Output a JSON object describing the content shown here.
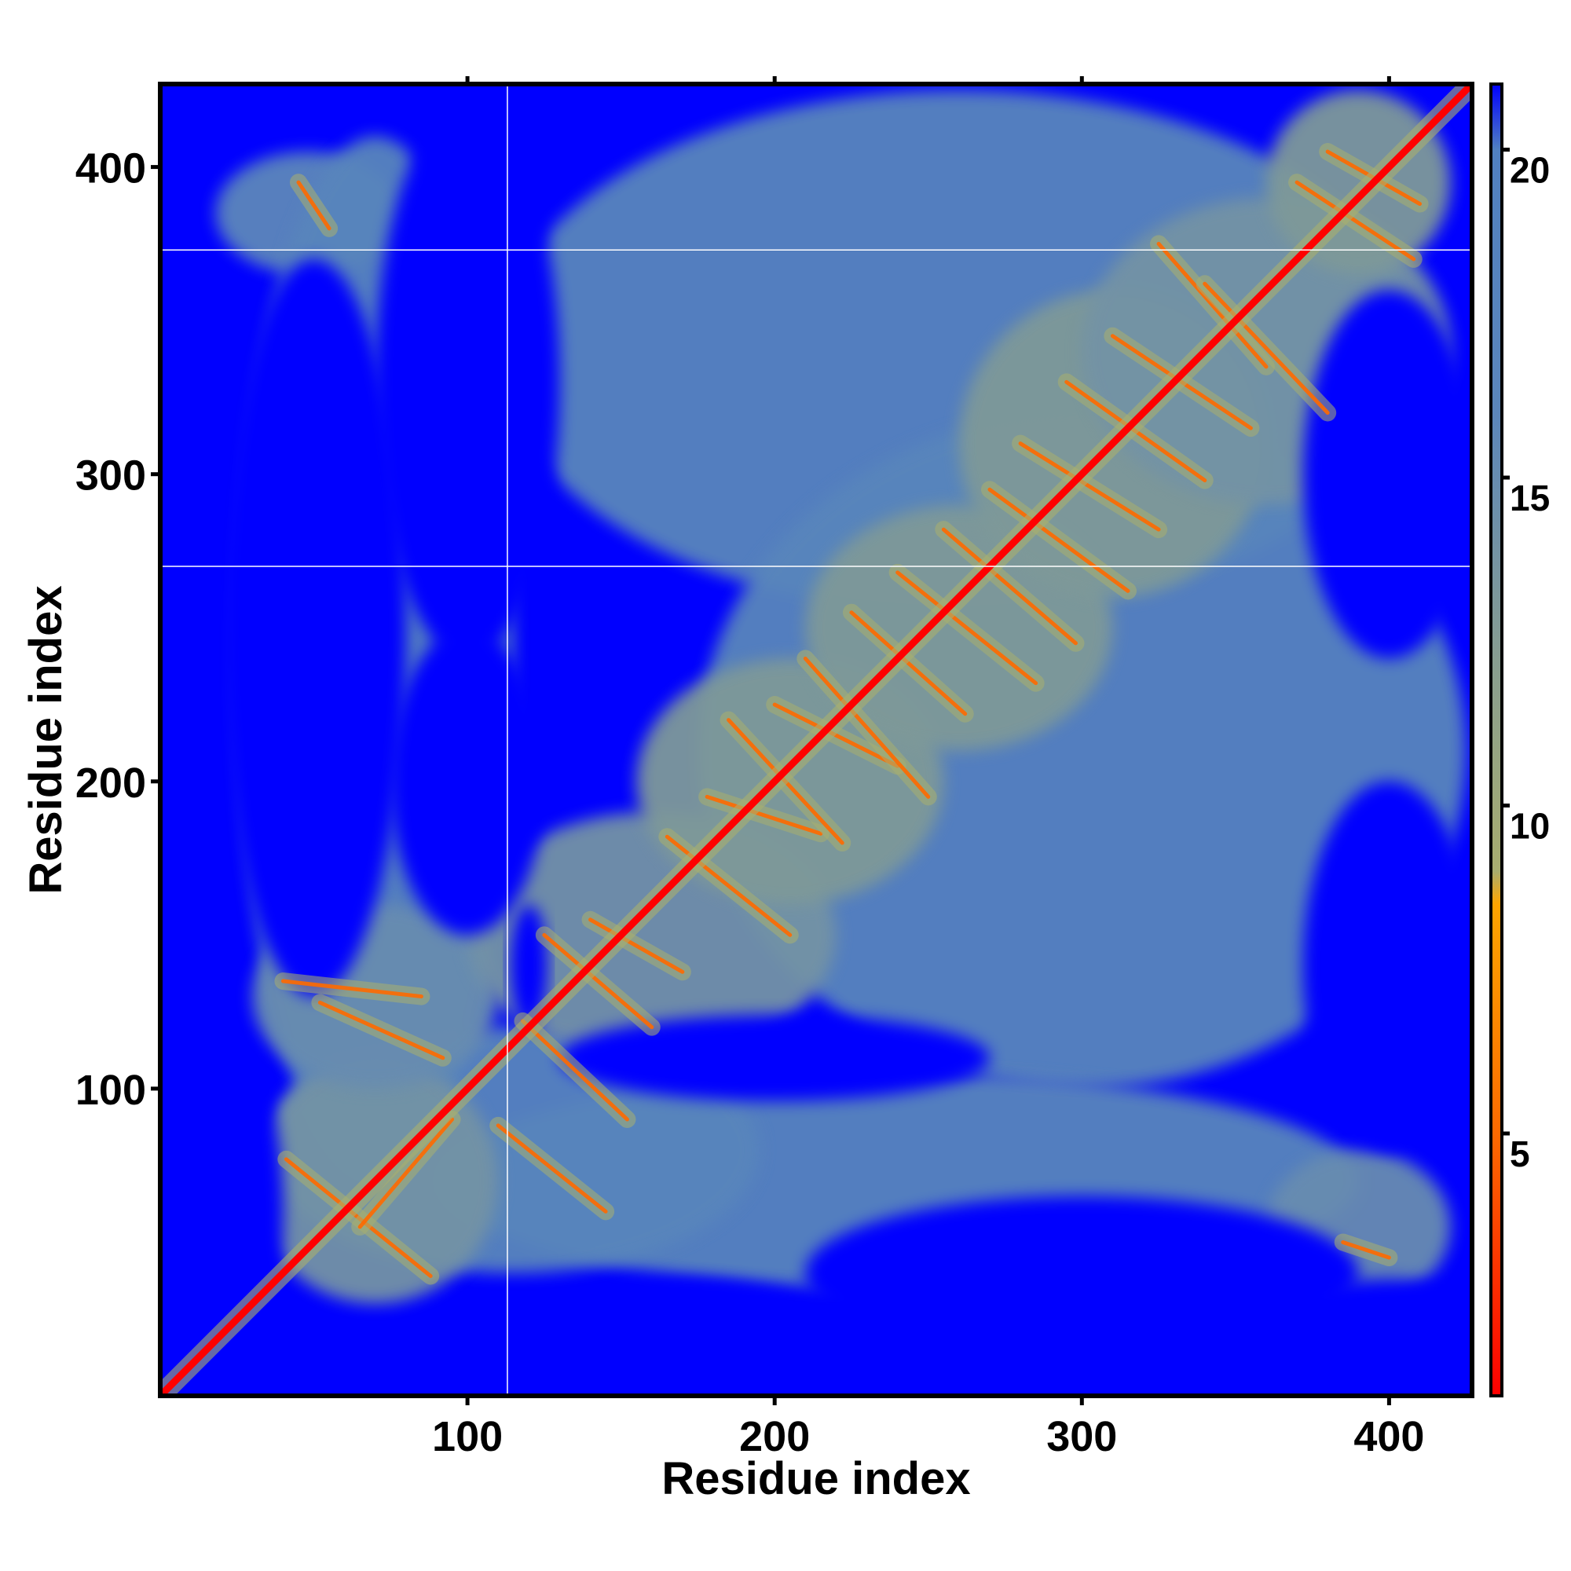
{
  "chart_data": {
    "type": "heatmap",
    "title": "",
    "xlabel": "Residue index",
    "ylabel": "Residue index",
    "xlim": [
      0,
      427
    ],
    "ylim": [
      0,
      427
    ],
    "x_ticks": [
      100,
      200,
      300,
      400
    ],
    "y_ticks": [
      100,
      200,
      300,
      400
    ],
    "grid": false,
    "colorbar": {
      "range": [
        1,
        21
      ],
      "ticks": [
        5,
        10,
        15,
        20
      ],
      "stops": [
        {
          "value": 1,
          "color": "#ff0000"
        },
        {
          "value": 5,
          "color": "#ff6a00"
        },
        {
          "value": 8.5,
          "color": "#ffa500"
        },
        {
          "value": 9,
          "color": "#a8ad6f"
        },
        {
          "value": 12,
          "color": "#8a9f8e"
        },
        {
          "value": 16,
          "color": "#5b86bb"
        },
        {
          "value": 20,
          "color": "#5080c0"
        },
        {
          "value": 21,
          "color": "#0000ff"
        }
      ]
    },
    "colors": {
      "background": "#0000ff",
      "mid": "#5985bd",
      "near": "#a8b070",
      "contact": "#ff6a00",
      "diagonal": "#ff0000"
    },
    "diagonal_value": 0,
    "contact_lines": [
      {
        "from": [
          41,
          77
        ],
        "to": [
          88,
          39
        ]
      },
      {
        "from": [
          65,
          55
        ],
        "to": [
          95,
          90
        ]
      },
      {
        "from": [
          110,
          88
        ],
        "to": [
          145,
          60
        ]
      },
      {
        "from": [
          118,
          122
        ],
        "to": [
          152,
          90
        ]
      },
      {
        "from": [
          52,
          128
        ],
        "to": [
          92,
          110
        ]
      },
      {
        "from": [
          40,
          135
        ],
        "to": [
          85,
          130
        ]
      },
      {
        "from": [
          125,
          150
        ],
        "to": [
          160,
          120
        ]
      },
      {
        "from": [
          140,
          155
        ],
        "to": [
          170,
          138
        ]
      },
      {
        "from": [
          165,
          182
        ],
        "to": [
          205,
          150
        ]
      },
      {
        "from": [
          178,
          195
        ],
        "to": [
          215,
          183
        ]
      },
      {
        "from": [
          185,
          220
        ],
        "to": [
          222,
          180
        ]
      },
      {
        "from": [
          200,
          225
        ],
        "to": [
          240,
          205
        ]
      },
      {
        "from": [
          210,
          240
        ],
        "to": [
          250,
          195
        ]
      },
      {
        "from": [
          225,
          255
        ],
        "to": [
          262,
          222
        ]
      },
      {
        "from": [
          240,
          268
        ],
        "to": [
          285,
          232
        ]
      },
      {
        "from": [
          255,
          282
        ],
        "to": [
          298,
          245
        ]
      },
      {
        "from": [
          270,
          295
        ],
        "to": [
          315,
          262
        ]
      },
      {
        "from": [
          280,
          310
        ],
        "to": [
          325,
          282
        ]
      },
      {
        "from": [
          295,
          330
        ],
        "to": [
          340,
          298
        ]
      },
      {
        "from": [
          310,
          345
        ],
        "to": [
          355,
          315
        ]
      },
      {
        "from": [
          325,
          375
        ],
        "to": [
          360,
          335
        ]
      },
      {
        "from": [
          340,
          362
        ],
        "to": [
          380,
          320
        ]
      },
      {
        "from": [
          370,
          395
        ],
        "to": [
          408,
          370
        ]
      },
      {
        "from": [
          380,
          405
        ],
        "to": [
          410,
          388
        ]
      },
      {
        "from": [
          45,
          395
        ],
        "to": [
          55,
          380
        ]
      },
      {
        "from": [
          385,
          50
        ],
        "to": [
          400,
          45
        ]
      }
    ],
    "blobs": [
      {
        "center": [
          48,
          385
        ],
        "radius": [
          30,
          20
        ],
        "value": 16
      },
      {
        "center": [
          70,
          240
        ],
        "radius": [
          45,
          170
        ],
        "value": 17
      },
      {
        "center": [
          260,
          340
        ],
        "radius": [
          150,
          85
        ],
        "value": 17
      },
      {
        "center": [
          300,
          210
        ],
        "radius": [
          125,
          110
        ],
        "value": 17
      },
      {
        "center": [
          240,
          70
        ],
        "radius": [
          150,
          35
        ],
        "value": 17
      },
      {
        "center": [
          115,
          80
        ],
        "radius": [
          80,
          40
        ],
        "value": 17
      },
      {
        "center": [
          70,
          70
        ],
        "radius": [
          40,
          40
        ],
        "value": 14
      },
      {
        "center": [
          70,
          130
        ],
        "radius": [
          40,
          30
        ],
        "value": 15
      },
      {
        "center": [
          160,
          150
        ],
        "radius": [
          60,
          40
        ],
        "value": 14
      },
      {
        "center": [
          205,
          200
        ],
        "radius": [
          50,
          40
        ],
        "value": 13
      },
      {
        "center": [
          260,
          250
        ],
        "radius": [
          50,
          40
        ],
        "value": 13
      },
      {
        "center": [
          310,
          310
        ],
        "radius": [
          50,
          50
        ],
        "value": 13
      },
      {
        "center": [
          360,
          340
        ],
        "radius": [
          60,
          50
        ],
        "value": 14
      },
      {
        "center": [
          390,
          395
        ],
        "radius": [
          30,
          30
        ],
        "value": 13
      },
      {
        "center": [
          390,
          55
        ],
        "radius": [
          30,
          25
        ],
        "value": 15
      }
    ],
    "holes": [
      {
        "center": [
          50,
          250
        ],
        "radius": [
          30,
          120
        ]
      },
      {
        "center": [
          100,
          330
        ],
        "radius": [
          30,
          90
        ]
      },
      {
        "center": [
          100,
          200
        ],
        "radius": [
          25,
          50
        ]
      },
      {
        "center": [
          120,
          140
        ],
        "radius": [
          6,
          20
        ]
      },
      {
        "center": [
          300,
          40
        ],
        "radius": [
          90,
          25
        ]
      },
      {
        "center": [
          200,
          110
        ],
        "radius": [
          70,
          14
        ]
      },
      {
        "center": [
          400,
          140
        ],
        "radius": [
          28,
          60
        ]
      },
      {
        "center": [
          400,
          300
        ],
        "radius": [
          28,
          60
        ]
      },
      {
        "center": [
          20,
          60
        ],
        "radius": [
          20,
          60
        ]
      },
      {
        "center": [
          170,
          20
        ],
        "radius": [
          50,
          18
        ]
      },
      {
        "center": [
          400,
          20
        ],
        "radius": [
          40,
          18
        ]
      }
    ],
    "grid_lines": {
      "x": [
        113
      ],
      "y": [
        270,
        373
      ]
    }
  }
}
